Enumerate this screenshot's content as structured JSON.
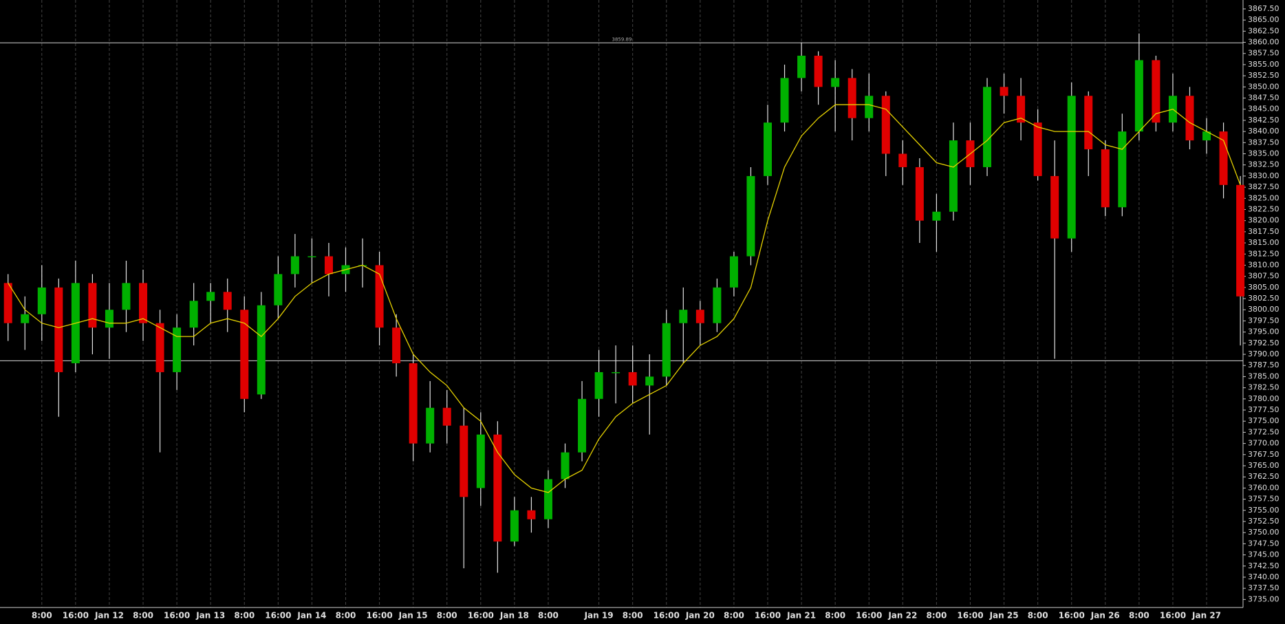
{
  "chart_data": {
    "type": "candlestick",
    "categories": [
      null,
      null,
      "8:00",
      null,
      "16:00",
      null,
      "Jan 12",
      null,
      "8:00",
      null,
      "16:00",
      null,
      "Jan 13",
      null,
      "8:00",
      null,
      "16:00",
      null,
      "Jan 14",
      null,
      "8:00",
      null,
      "16:00",
      null,
      "Jan 15",
      null,
      "8:00",
      null,
      "16:00",
      null,
      "Jan 18",
      null,
      "8:00",
      null,
      null,
      "Jan 19",
      null,
      "8:00",
      null,
      "16:00",
      null,
      "Jan 20",
      null,
      "8:00",
      null,
      "16:00",
      null,
      "Jan 21",
      null,
      "8:00",
      null,
      "16:00",
      null,
      "Jan 22",
      null,
      "8:00",
      null,
      "16:00",
      null,
      "Jan 25",
      null,
      "8:00",
      null,
      "16:00",
      null,
      "Jan 26",
      null,
      "8:00",
      null,
      "16:00",
      null,
      "Jan 27",
      null,
      null
    ],
    "open": [
      3806,
      3797,
      3799,
      3805,
      3788,
      3806,
      3796,
      3800,
      3806,
      3797,
      3786,
      3796,
      3802,
      3804,
      3800,
      3781,
      3801,
      3808,
      3812,
      3812,
      3808,
      3810,
      3810,
      3796,
      3788,
      3770,
      3778,
      3774,
      3760,
      3772,
      3748,
      3755,
      3753,
      3762,
      3768,
      3780,
      3786,
      3786,
      3783,
      3785,
      3797,
      3800,
      3797,
      3805,
      3812,
      3830,
      3842,
      3852,
      3857,
      3850,
      3852,
      3843,
      3848,
      3835,
      3832,
      3820,
      3822,
      3838,
      3832,
      3850,
      3848,
      3842,
      3830,
      3816,
      3848,
      3836,
      3823,
      3840,
      3856,
      3842,
      3848,
      3838,
      3840,
      3828
    ],
    "high": [
      3808,
      3803,
      3810,
      3807,
      3811,
      3808,
      3806,
      3811,
      3809,
      3800,
      3799,
      3806,
      3806,
      3807,
      3803,
      3804,
      3812,
      3817,
      3816,
      3815,
      3814,
      3816,
      3813,
      3799,
      3790,
      3784,
      3782,
      3778,
      3777,
      3775,
      3758,
      3758,
      3764,
      3770,
      3784,
      3791,
      3792,
      3792,
      3790,
      3800,
      3805,
      3802,
      3807,
      3813,
      3832,
      3846,
      3855,
      3860,
      3858,
      3856,
      3854,
      3853,
      3849,
      3838,
      3834,
      3826,
      3842,
      3842,
      3852,
      3853,
      3852,
      3845,
      3838,
      3851,
      3849,
      3838,
      3844,
      3862,
      3857,
      3853,
      3850,
      3843,
      3842,
      3830
    ],
    "low": [
      3793,
      3791,
      3793,
      3776,
      3786,
      3790,
      3789,
      3795,
      3793,
      3768,
      3782,
      3792,
      3797,
      3795,
      3777,
      3780,
      3798,
      3805,
      3806,
      3803,
      3804,
      3805,
      3792,
      3785,
      3766,
      3768,
      3770,
      3742,
      3756,
      3741,
      3747,
      3750,
      3751,
      3760,
      3766,
      3776,
      3779,
      3779,
      3772,
      3783,
      3788,
      3792,
      3795,
      3803,
      3810,
      3828,
      3840,
      3849,
      3846,
      3840,
      3838,
      3840,
      3830,
      3828,
      3815,
      3813,
      3820,
      3828,
      3830,
      3844,
      3838,
      3829,
      3789,
      3813,
      3830,
      3821,
      3821,
      3838,
      3840,
      3840,
      3836,
      3835,
      3825,
      3792
    ],
    "close": [
      3797,
      3799,
      3805,
      3786,
      3806,
      3796,
      3800,
      3806,
      3797,
      3786,
      3796,
      3802,
      3804,
      3800,
      3780,
      3801,
      3808,
      3812,
      3812,
      3808,
      3810,
      3810,
      3796,
      3788,
      3770,
      3778,
      3774,
      3758,
      3772,
      3748,
      3755,
      3753,
      3762,
      3768,
      3780,
      3786,
      3786,
      3783,
      3785,
      3797,
      3800,
      3797,
      3805,
      3812,
      3830,
      3842,
      3852,
      3857,
      3850,
      3852,
      3843,
      3848,
      3835,
      3832,
      3820,
      3822,
      3838,
      3832,
      3850,
      3848,
      3842,
      3830,
      3816,
      3848,
      3836,
      3823,
      3840,
      3856,
      3842,
      3848,
      3838,
      3840,
      3828,
      3803
    ],
    "up_color": "#00b000",
    "down_color": "#e00000",
    "wick_color": "#e6e6e6",
    "ma": {
      "color": "#e6d200",
      "values": [
        3806,
        3800,
        3797,
        3796,
        3797,
        3798,
        3797,
        3797,
        3798,
        3796,
        3794,
        3794,
        3797,
        3798,
        3797,
        3794,
        3798,
        3803,
        3806,
        3808,
        3809,
        3810,
        3808,
        3798,
        3790,
        3786,
        3783,
        3778,
        3775,
        3768,
        3763,
        3760,
        3759,
        3762,
        3764,
        3771,
        3776,
        3779,
        3781,
        3783,
        3788,
        3792,
        3794,
        3798,
        3805,
        3820,
        3832,
        3839,
        3843,
        3846,
        3846,
        3846,
        3845,
        3841,
        3837,
        3833,
        3832,
        3835,
        3838,
        3842,
        3843,
        3841,
        3840,
        3840,
        3840,
        3837,
        3836,
        3840,
        3844,
        3845,
        3842,
        3840,
        3838,
        3828
      ]
    },
    "levels": [
      {
        "value": 3859.89,
        "label": "3859.89"
      },
      {
        "value": 3788.55
      }
    ],
    "ylim": [
      3733.2,
      3869.5
    ],
    "yticks": [
      {
        "value": 3735,
        "label": "3735.00"
      },
      {
        "value": 3737.5,
        "label": "3737.50"
      },
      {
        "value": 3740,
        "label": "3740.00"
      },
      {
        "value": 3742.5,
        "label": "3742.50"
      },
      {
        "value": 3745,
        "label": "3745.00"
      },
      {
        "value": 3747.5,
        "label": "3747.50"
      },
      {
        "value": 3750,
        "label": "3750.00"
      },
      {
        "value": 3752.5,
        "label": "3752.50"
      },
      {
        "value": 3755,
        "label": "3755.00"
      },
      {
        "value": 3757.5,
        "label": "3757.50"
      },
      {
        "value": 3760,
        "label": "3760.00"
      },
      {
        "value": 3762.5,
        "label": "3762.50"
      },
      {
        "value": 3765,
        "label": "3765.00"
      },
      {
        "value": 3767.5,
        "label": "3767.50"
      },
      {
        "value": 3770,
        "label": "3770.00"
      },
      {
        "value": 3772.5,
        "label": "3772.50"
      },
      {
        "value": 3775,
        "label": "3775.00"
      },
      {
        "value": 3777.5,
        "label": "3777.50"
      },
      {
        "value": 3780,
        "label": "3780.00"
      },
      {
        "value": 3782.5,
        "label": "3782.50"
      },
      {
        "value": 3785,
        "label": "3785.00"
      },
      {
        "value": 3787.5,
        "label": "3787.50"
      },
      {
        "value": 3790,
        "label": "3790.00"
      },
      {
        "value": 3792.5,
        "label": "3792.50"
      },
      {
        "value": 3795,
        "label": "3795.00"
      },
      {
        "value": 3797.5,
        "label": "3797.50"
      },
      {
        "value": 3800,
        "label": "3800.00"
      },
      {
        "value": 3802.5,
        "label": "3802.50"
      },
      {
        "value": 3805,
        "label": "3805.00"
      },
      {
        "value": 3807.5,
        "label": "3807.50"
      },
      {
        "value": 3810,
        "label": "3810.00"
      },
      {
        "value": 3812.5,
        "label": "3812.50"
      },
      {
        "value": 3815,
        "label": "3815.00"
      },
      {
        "value": 3817.5,
        "label": "3817.50"
      },
      {
        "value": 3820,
        "label": "3820.00"
      },
      {
        "value": 3822.5,
        "label": "3822.50"
      },
      {
        "value": 3825,
        "label": "3825.00"
      },
      {
        "value": 3827.5,
        "label": "3827.50"
      },
      {
        "value": 3830,
        "label": "3830.00"
      },
      {
        "value": 3832.5,
        "label": "3832.50"
      },
      {
        "value": 3835,
        "label": "3835.00"
      },
      {
        "value": 3837.5,
        "label": "3837.50"
      },
      {
        "value": 3840,
        "label": "3840.00"
      },
      {
        "value": 3842.5,
        "label": "3842.50"
      },
      {
        "value": 3845,
        "label": "3845.00"
      },
      {
        "value": 3847.5,
        "label": "3847.50"
      },
      {
        "value": 3850,
        "label": "3850.00"
      },
      {
        "value": 3852.5,
        "label": "3852.50"
      },
      {
        "value": 3855,
        "label": "3855.00"
      },
      {
        "value": 3857.5,
        "label": "3857.50"
      },
      {
        "value": 3860,
        "label": "3860.00"
      },
      {
        "value": 3862.5,
        "label": "3862.50"
      },
      {
        "value": 3865,
        "label": "3865.00"
      },
      {
        "value": 3867.5,
        "label": "3867.50"
      }
    ]
  }
}
